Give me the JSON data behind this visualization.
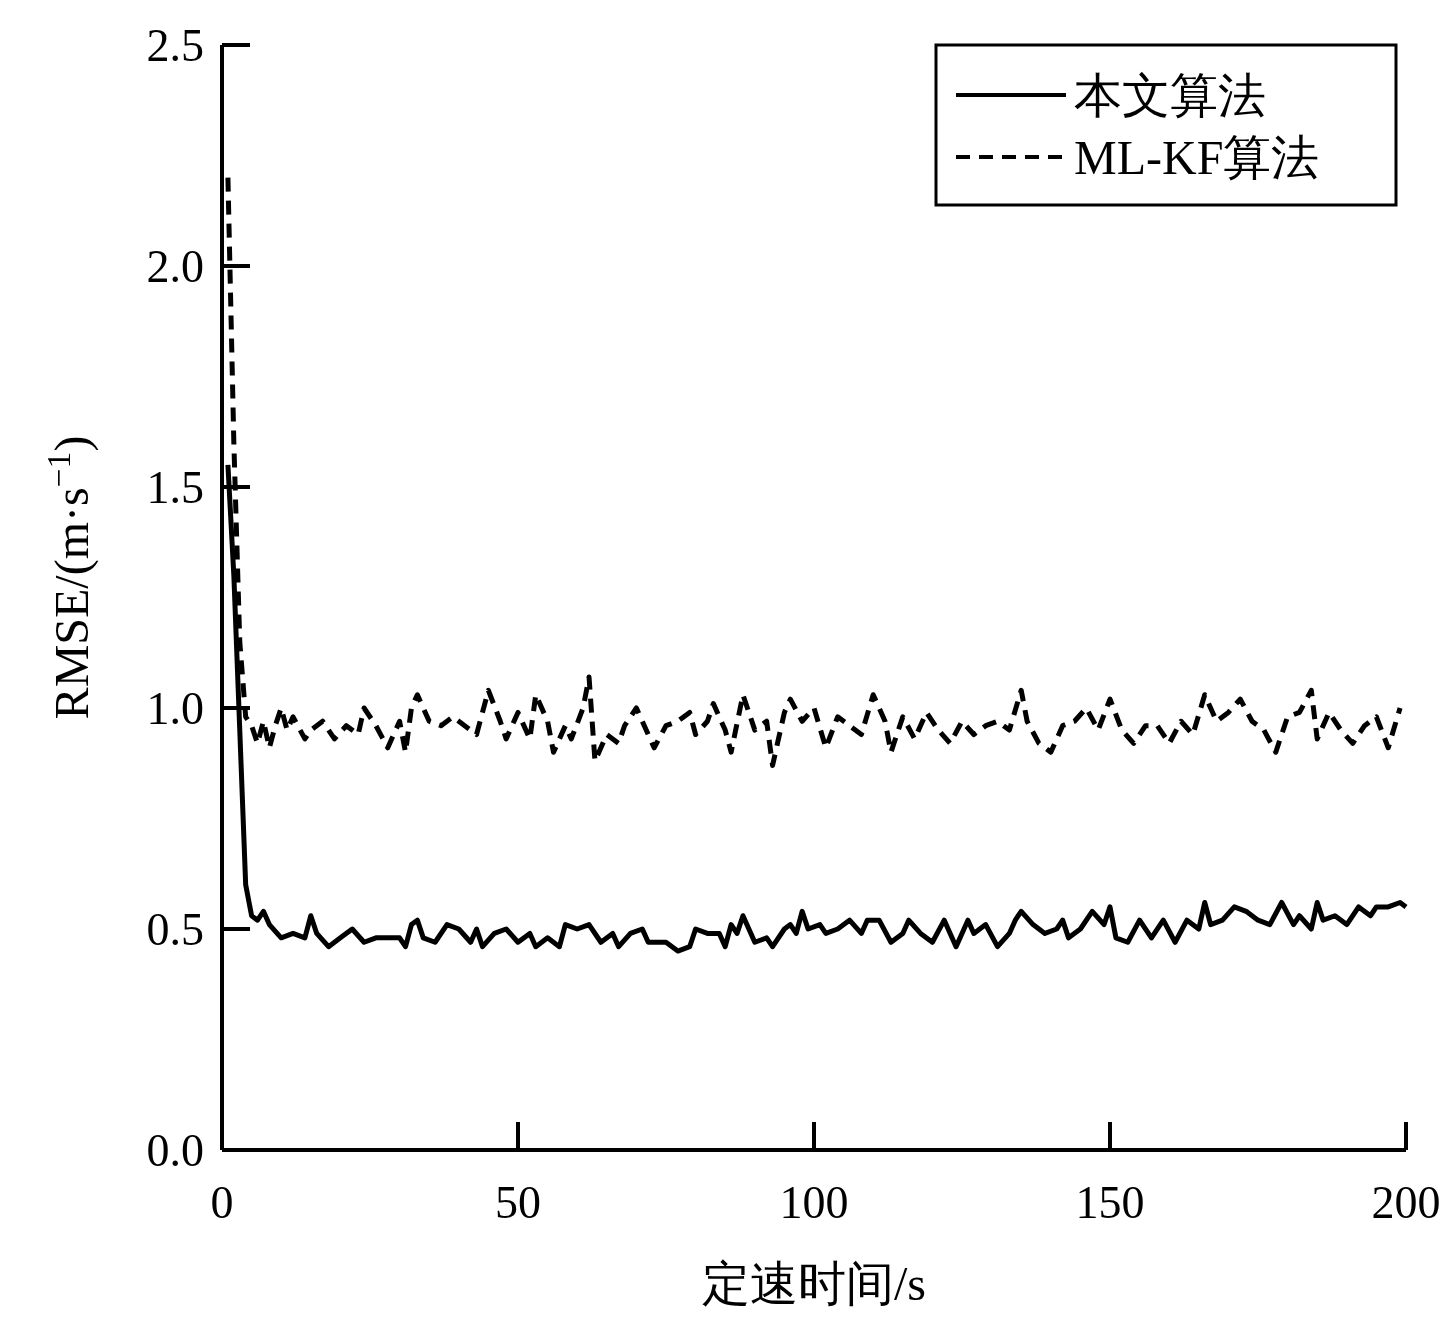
{
  "chart_data": {
    "type": "line",
    "xlabel": "定速时间/s",
    "ylabel": "RMSE/(m·s$^{−1}$)",
    "xlim": [
      0,
      200
    ],
    "ylim": [
      0,
      2.5
    ],
    "xticks": [
      0,
      50,
      100,
      150,
      200
    ],
    "yticks": [
      {
        "value": 0,
        "label": "0.0"
      },
      {
        "value": 0.5,
        "label": "0.5"
      },
      {
        "value": 1,
        "label": "1.0"
      },
      {
        "value": 1.5,
        "label": "1.5"
      },
      {
        "value": 2,
        "label": "2.0"
      },
      {
        "value": 2.5,
        "label": "2.5"
      }
    ],
    "legend": "top right",
    "series": [
      {
        "name": "本文算法",
        "color": "#000000",
        "line_style": "solid",
        "x": [
          1,
          2,
          3,
          4,
          5,
          6,
          7,
          8,
          10,
          12,
          14,
          15,
          16,
          18,
          20,
          22,
          24,
          26,
          28,
          30,
          31,
          32,
          33,
          34,
          36,
          38,
          40,
          42,
          43,
          44,
          46,
          48,
          50,
          52,
          53,
          55,
          57,
          58,
          60,
          62,
          64,
          66,
          67,
          69,
          71,
          72,
          75,
          77,
          79,
          80,
          82,
          84,
          85,
          86,
          87,
          88,
          90,
          92,
          93,
          95,
          96,
          97,
          98,
          99,
          101,
          102,
          104,
          106,
          108,
          109,
          111,
          113,
          115,
          116,
          118,
          120,
          122,
          124,
          126,
          127,
          129,
          131,
          133,
          134,
          135,
          137,
          139,
          141,
          142,
          143,
          145,
          147,
          149,
          150,
          151,
          153,
          155,
          157,
          159,
          161,
          163,
          165,
          166,
          167,
          169,
          171,
          173,
          175,
          177,
          179,
          181,
          182,
          184,
          185,
          186,
          188,
          190,
          192,
          194,
          195,
          197,
          199,
          200
        ],
        "values": [
          1.55,
          1.3,
          0.95,
          0.6,
          0.53,
          0.52,
          0.54,
          0.51,
          0.48,
          0.49,
          0.48,
          0.53,
          0.49,
          0.46,
          0.48,
          0.5,
          0.47,
          0.48,
          0.48,
          0.48,
          0.46,
          0.51,
          0.52,
          0.48,
          0.47,
          0.51,
          0.5,
          0.47,
          0.5,
          0.46,
          0.49,
          0.5,
          0.47,
          0.49,
          0.46,
          0.48,
          0.46,
          0.51,
          0.5,
          0.51,
          0.47,
          0.49,
          0.46,
          0.49,
          0.5,
          0.47,
          0.47,
          0.45,
          0.46,
          0.5,
          0.49,
          0.49,
          0.46,
          0.51,
          0.49,
          0.53,
          0.47,
          0.48,
          0.46,
          0.5,
          0.51,
          0.49,
          0.54,
          0.5,
          0.51,
          0.49,
          0.5,
          0.52,
          0.49,
          0.52,
          0.52,
          0.47,
          0.49,
          0.52,
          0.49,
          0.47,
          0.52,
          0.46,
          0.52,
          0.49,
          0.51,
          0.46,
          0.49,
          0.52,
          0.54,
          0.51,
          0.49,
          0.5,
          0.52,
          0.48,
          0.5,
          0.54,
          0.51,
          0.55,
          0.48,
          0.47,
          0.52,
          0.48,
          0.52,
          0.47,
          0.52,
          0.5,
          0.56,
          0.51,
          0.52,
          0.55,
          0.54,
          0.52,
          0.51,
          0.56,
          0.51,
          0.53,
          0.5,
          0.56,
          0.52,
          0.53,
          0.51,
          0.55,
          0.53,
          0.55,
          0.55,
          0.56,
          0.55
        ]
      },
      {
        "name": "ML-KF算法",
        "color": "#000000",
        "line_style": "dashed",
        "x": [
          1,
          2,
          3,
          4,
          5,
          6,
          7,
          8,
          9,
          10,
          11,
          12,
          14,
          15,
          17,
          19,
          21,
          23,
          24,
          26,
          28,
          30,
          31,
          32,
          33,
          35,
          37,
          39,
          41,
          43,
          45,
          47,
          48,
          50,
          52,
          53,
          55,
          56,
          58,
          59,
          61,
          62,
          63,
          65,
          67,
          68,
          70,
          72,
          73,
          75,
          77,
          79,
          80,
          82,
          83,
          85,
          86,
          88,
          90,
          92,
          93,
          95,
          96,
          98,
          100,
          102,
          104,
          106,
          108,
          110,
          112,
          113,
          115,
          117,
          119,
          121,
          123,
          125,
          127,
          129,
          131,
          133,
          135,
          136,
          138,
          140,
          142,
          144,
          146,
          148,
          150,
          152,
          154,
          156,
          158,
          160,
          162,
          164,
          166,
          168,
          170,
          172,
          174,
          176,
          178,
          180,
          182,
          184,
          185,
          187,
          189,
          191,
          193,
          195,
          197,
          199
        ],
        "values": [
          2.2,
          1.6,
          1.15,
          0.98,
          0.96,
          0.92,
          0.97,
          0.91,
          0.96,
          1.0,
          0.95,
          0.98,
          0.93,
          0.95,
          0.97,
          0.93,
          0.96,
          0.94,
          1.0,
          0.96,
          0.91,
          0.97,
          0.9,
          1.0,
          1.03,
          0.97,
          0.96,
          0.98,
          0.96,
          0.94,
          1.04,
          0.97,
          0.93,
          0.99,
          0.93,
          1.03,
          0.97,
          0.9,
          0.96,
          0.93,
          1.0,
          1.07,
          0.88,
          0.94,
          0.92,
          0.96,
          1.0,
          0.94,
          0.91,
          0.96,
          0.97,
          0.99,
          0.94,
          0.97,
          1.01,
          0.95,
          0.9,
          1.03,
          0.95,
          0.97,
          0.87,
          0.99,
          1.02,
          0.97,
          1.0,
          0.91,
          0.98,
          0.96,
          0.94,
          1.03,
          0.97,
          0.9,
          0.98,
          0.93,
          0.99,
          0.95,
          0.92,
          0.97,
          0.94,
          0.96,
          0.97,
          0.95,
          1.04,
          0.97,
          0.92,
          0.9,
          0.96,
          0.97,
          1.0,
          0.95,
          1.02,
          0.95,
          0.92,
          0.96,
          0.96,
          0.92,
          0.97,
          0.94,
          1.03,
          0.97,
          0.99,
          1.02,
          0.97,
          0.95,
          0.9,
          0.98,
          0.99,
          1.04,
          0.93,
          0.99,
          0.95,
          0.92,
          0.96,
          0.98,
          0.91,
          1.0
        ]
      }
    ]
  }
}
